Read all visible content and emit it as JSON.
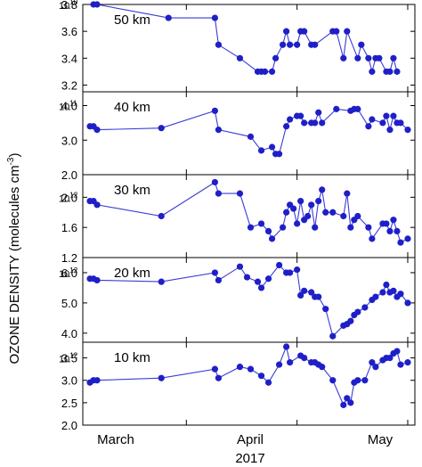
{
  "figure": {
    "ylabel": "OZONE DENSITY  (molecules cm",
    "ylabel_sup": "-3",
    "ylabel_close": ")",
    "xlabel": "2017",
    "month_labels": [
      "March",
      "April",
      "May"
    ],
    "marker_color": "#1f1fc8",
    "line_color": "#3b3bd6"
  },
  "chart_data": [
    {
      "type": "line",
      "panel_label": "50 km",
      "scale_label": "10",
      "scale_exp": "10",
      "ylim": [
        3.15,
        3.8
      ],
      "yticks": [
        3.2,
        3.4,
        3.6,
        3.8
      ],
      "ytick_labels": [
        "3.2",
        "3.4",
        "3.6",
        "3.8"
      ],
      "x": [
        3,
        4,
        24,
        37,
        38,
        44,
        49,
        50,
        51,
        53,
        54,
        56,
        57,
        58,
        60,
        61,
        62,
        64,
        65,
        70,
        71,
        73,
        74,
        77,
        78,
        80,
        81,
        82,
        83,
        85,
        86,
        87,
        88
      ],
      "values": [
        3.8,
        3.8,
        3.7,
        3.7,
        3.5,
        3.4,
        3.3,
        3.3,
        3.3,
        3.3,
        3.4,
        3.5,
        3.6,
        3.5,
        3.5,
        3.6,
        3.6,
        3.5,
        3.5,
        3.6,
        3.6,
        3.4,
        3.6,
        3.4,
        3.5,
        3.4,
        3.3,
        3.4,
        3.4,
        3.3,
        3.3,
        3.4,
        3.3
      ]
    },
    {
      "type": "line",
      "panel_label": "40 km",
      "scale_label": "4.0",
      "scale_exp": "11",
      "ylim": [
        2.0,
        4.4
      ],
      "yticks": [
        2.0,
        3.0,
        4.0
      ],
      "ytick_labels": [
        "2.0",
        "3.0",
        "4.0"
      ],
      "x": [
        2,
        3,
        4,
        22,
        37,
        38,
        47,
        50,
        53,
        54,
        55,
        57,
        58,
        60,
        61,
        62,
        64,
        65,
        66,
        67,
        71,
        75,
        76,
        77,
        80,
        81,
        84,
        85,
        86,
        87,
        88,
        89,
        91
      ],
      "values": [
        3.4,
        3.4,
        3.3,
        3.35,
        3.85,
        3.3,
        3.1,
        2.7,
        2.8,
        2.6,
        2.6,
        3.4,
        3.6,
        3.7,
        3.7,
        3.5,
        3.5,
        3.5,
        3.8,
        3.5,
        3.9,
        3.85,
        3.9,
        3.9,
        3.4,
        3.6,
        3.5,
        3.7,
        3.3,
        3.7,
        3.5,
        3.5,
        3.3
      ]
    },
    {
      "type": "line",
      "panel_label": "30 km",
      "scale_label": "2.0",
      "scale_exp": "12",
      "ylim": [
        1.2,
        2.3
      ],
      "yticks": [
        1.2,
        1.6,
        2.0
      ],
      "ytick_labels": [
        "1.2",
        "1.6",
        "2.0"
      ],
      "x": [
        2,
        3,
        4,
        22,
        37,
        38,
        44,
        47,
        50,
        52,
        53,
        56,
        57,
        58,
        59,
        60,
        61,
        62,
        63,
        64,
        65,
        66,
        67,
        68,
        70,
        73,
        74,
        75,
        76,
        77,
        80,
        81,
        84,
        85,
        86,
        87,
        88,
        89,
        91
      ],
      "values": [
        1.95,
        1.95,
        1.9,
        1.75,
        2.2,
        2.05,
        2.05,
        1.6,
        1.65,
        1.55,
        1.45,
        1.6,
        1.8,
        1.9,
        1.85,
        1.65,
        1.95,
        1.7,
        1.75,
        1.9,
        1.6,
        1.95,
        2.1,
        1.8,
        1.8,
        1.75,
        2.05,
        1.6,
        1.7,
        1.75,
        1.6,
        1.45,
        1.65,
        1.65,
        1.55,
        1.7,
        1.55,
        1.4,
        1.45
      ]
    },
    {
      "type": "line",
      "panel_label": "20 km",
      "scale_label": "6.0",
      "scale_exp": "12",
      "ylim": [
        3.7,
        6.5
      ],
      "yticks": [
        4.0,
        5.0,
        6.0
      ],
      "ytick_labels": [
        "4.0",
        "5.0",
        "6.0"
      ],
      "x": [
        2,
        3,
        4,
        22,
        37,
        38,
        44,
        46,
        49,
        50,
        52,
        55,
        57,
        58,
        60,
        61,
        62,
        64,
        65,
        66,
        68,
        70,
        73,
        74,
        75,
        76,
        77,
        79,
        81,
        82,
        84,
        85,
        86,
        87,
        88,
        89,
        91
      ],
      "values": [
        5.8,
        5.8,
        5.75,
        5.7,
        6.0,
        5.75,
        6.2,
        5.85,
        5.7,
        5.5,
        5.8,
        6.25,
        6.0,
        6.0,
        6.1,
        5.25,
        5.4,
        5.35,
        5.2,
        5.2,
        4.8,
        3.9,
        4.25,
        4.3,
        4.4,
        4.6,
        4.7,
        4.85,
        5.1,
        5.2,
        5.35,
        5.6,
        5.35,
        5.4,
        5.2,
        5.3,
        5.0
      ]
    },
    {
      "type": "line",
      "panel_label": "10 km",
      "scale_label": "3.5",
      "scale_exp": "12",
      "ylim": [
        2.0,
        3.85
      ],
      "yticks": [
        2.0,
        2.5,
        3.0,
        3.5
      ],
      "ytick_labels": [
        "2.0",
        "2.5",
        "3.0",
        "3.5"
      ],
      "x": [
        2,
        3,
        4,
        22,
        37,
        38,
        44,
        47,
        50,
        52,
        55,
        57,
        58,
        61,
        62,
        64,
        65,
        66,
        67,
        70,
        73,
        74,
        75,
        76,
        77,
        79,
        81,
        82,
        84,
        85,
        86,
        87,
        88,
        89,
        91
      ],
      "values": [
        2.95,
        3.0,
        3.0,
        3.05,
        3.25,
        3.05,
        3.3,
        3.25,
        3.1,
        2.95,
        3.35,
        3.75,
        3.4,
        3.55,
        3.5,
        3.4,
        3.4,
        3.35,
        3.3,
        3.0,
        2.45,
        2.6,
        2.5,
        2.95,
        3.0,
        3.0,
        3.4,
        3.3,
        3.45,
        3.5,
        3.5,
        3.6,
        3.65,
        3.35,
        3.4
      ]
    }
  ]
}
